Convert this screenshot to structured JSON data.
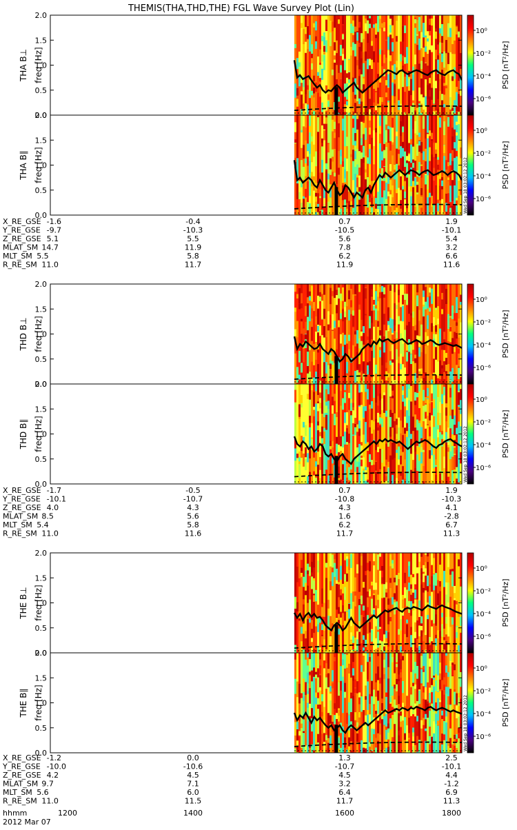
{
  "title": "THEMIS(THA,THD,THE) FGL Wave Survey Plot (Lin)",
  "footer": {
    "hhmm_label": "hhmm",
    "date": "2012 Mar 07"
  },
  "colorbar": {
    "label": "PSD [nT²/Hz]",
    "ticks": [
      "10⁰",
      "10⁻²",
      "10⁻⁴",
      "10⁻⁶"
    ],
    "colors": [
      "#000000",
      "#4a0080",
      "#0000ff",
      "#00c0ff",
      "#00ff80",
      "#ffff00",
      "#ff8000",
      "#ff0000",
      "#b00000"
    ]
  },
  "stamp": "Wed Sep 18 03:02:12 2012",
  "chart_data": {
    "type": "heatmap",
    "x_range_hhmm": [
      1130,
      1835
    ],
    "data_start_hhmm": 1542,
    "ylim": [
      0,
      2.0
    ],
    "yticks": [
      "2.0",
      "1.5",
      "1.0",
      "0.5",
      "0.0"
    ],
    "ylabel": "freq [Hz]",
    "probes": [
      {
        "name": "THA",
        "panels": [
          {
            "label": "THA B⊥",
            "solid_line": [
              1.1,
              0.75,
              0.8,
              0.72,
              0.75,
              0.78,
              0.7,
              0.62,
              0.55,
              0.6,
              0.5,
              0.45,
              0.5,
              0.48,
              0.55,
              0.6,
              0.55,
              0.45,
              0.5,
              0.55,
              0.6,
              0.65,
              0.55,
              0.5,
              0.45,
              0.5,
              0.55,
              0.6,
              0.65,
              0.7,
              0.75,
              0.8,
              0.85,
              0.9,
              0.88,
              0.85,
              0.82,
              0.88,
              0.9,
              0.85,
              0.82,
              0.85,
              0.88,
              0.9,
              0.88,
              0.85,
              0.82,
              0.8,
              0.85,
              0.88,
              0.9,
              0.85,
              0.82,
              0.8,
              0.85,
              0.88,
              0.9,
              0.85,
              0.82,
              0.7
            ],
            "dashed_line": 0.15
          },
          {
            "label": "THA B∥",
            "solid_line": [
              1.1,
              0.7,
              0.75,
              0.65,
              0.7,
              0.75,
              0.7,
              0.6,
              0.55,
              0.7,
              0.6,
              0.5,
              0.45,
              0.55,
              0.65,
              0.5,
              0.4,
              0.45,
              0.6,
              0.55,
              0.45,
              0.35,
              0.45,
              0.4,
              0.35,
              0.5,
              0.55,
              0.45,
              0.6,
              0.7,
              0.8,
              0.75,
              0.85,
              0.8,
              0.75,
              0.8,
              0.85,
              0.9,
              0.85,
              0.8,
              0.85,
              0.9,
              0.88,
              0.85,
              0.8,
              0.85,
              0.88,
              0.9,
              0.85,
              0.8,
              0.82,
              0.85,
              0.88,
              0.85,
              0.8,
              0.85,
              0.88,
              0.85,
              0.8,
              0.7
            ],
            "dashed_line": 0.18
          }
        ],
        "ephemeris": {
          "rows": [
            {
              "name": "X_RE_GSE",
              "values": [
                "-1.6",
                "-0.4",
                "0.7",
                "1.9"
              ]
            },
            {
              "name": "Y_RE_GSE",
              "values": [
                "-9.7",
                "-10.3",
                "-10.5",
                "-10.1"
              ]
            },
            {
              "name": "Z_RE_GSE",
              "values": [
                "5.1",
                "5.5",
                "5.6",
                "5.4"
              ]
            },
            {
              "name": "MLAT_SM",
              "values": [
                "14.7",
                "11.9",
                "7.8",
                "3.2"
              ]
            },
            {
              "name": "MLT_SM",
              "values": [
                "5.5",
                "5.8",
                "6.2",
                "6.6"
              ]
            },
            {
              "name": "R_RE_SM",
              "values": [
                "11.0",
                "11.7",
                "11.9",
                "11.6"
              ]
            }
          ]
        }
      },
      {
        "name": "THD",
        "panels": [
          {
            "label": "THD B⊥",
            "solid_line": [
              0.95,
              0.7,
              0.8,
              0.75,
              0.85,
              0.8,
              0.75,
              0.7,
              0.72,
              0.8,
              0.7,
              0.65,
              0.6,
              0.7,
              0.65,
              0.55,
              0.45,
              0.5,
              0.6,
              0.55,
              0.45,
              0.5,
              0.55,
              0.6,
              0.7,
              0.75,
              0.8,
              0.75,
              0.85,
              0.8,
              0.9,
              0.85,
              0.88,
              0.9,
              0.85,
              0.82,
              0.85,
              0.88,
              0.9,
              0.85,
              0.8,
              0.82,
              0.85,
              0.88,
              0.85,
              0.8,
              0.82,
              0.85,
              0.88,
              0.85,
              0.8,
              0.78,
              0.8,
              0.82,
              0.8,
              0.78,
              0.76,
              0.78,
              0.75,
              0.72
            ],
            "dashed_line": 0.15
          },
          {
            "label": "THD B∥",
            "solid_line": [
              0.95,
              0.8,
              0.75,
              0.85,
              0.8,
              0.7,
              0.75,
              0.65,
              0.7,
              0.8,
              0.75,
              0.6,
              0.55,
              0.6,
              0.5,
              0.45,
              0.55,
              0.6,
              0.5,
              0.45,
              0.4,
              0.5,
              0.55,
              0.6,
              0.65,
              0.7,
              0.75,
              0.8,
              0.85,
              0.8,
              0.88,
              0.85,
              0.9,
              0.85,
              0.88,
              0.85,
              0.82,
              0.85,
              0.8,
              0.75,
              0.7,
              0.75,
              0.8,
              0.85,
              0.82,
              0.85,
              0.88,
              0.85,
              0.8,
              0.75,
              0.72,
              0.78,
              0.8,
              0.85,
              0.88,
              0.9,
              0.85,
              0.82,
              0.78,
              0.75
            ],
            "dashed_line": 0.2
          }
        ],
        "ephemeris": {
          "rows": [
            {
              "name": "X_RE_GSE",
              "values": [
                "-1.7",
                "-0.5",
                "0.7",
                "1.9"
              ]
            },
            {
              "name": "Y_RE_GSE",
              "values": [
                "-10.1",
                "-10.7",
                "-10.8",
                "-10.3"
              ]
            },
            {
              "name": "Z_RE_GSE",
              "values": [
                "4.0",
                "4.3",
                "4.3",
                "4.1"
              ]
            },
            {
              "name": "MLAT_SM",
              "values": [
                "8.5",
                "5.6",
                "1.6",
                "-2.8"
              ]
            },
            {
              "name": "MLT_SM",
              "values": [
                "5.4",
                "5.8",
                "6.2",
                "6.7"
              ]
            },
            {
              "name": "R_RE_SM",
              "values": [
                "11.0",
                "11.6",
                "11.7",
                "11.3"
              ]
            }
          ]
        }
      },
      {
        "name": "THE",
        "panels": [
          {
            "label": "THE B⊥",
            "solid_line": [
              0.8,
              0.7,
              0.78,
              0.65,
              0.75,
              0.8,
              0.72,
              0.78,
              0.7,
              0.72,
              0.65,
              0.55,
              0.5,
              0.45,
              0.55,
              0.6,
              0.55,
              0.45,
              0.5,
              0.6,
              0.7,
              0.6,
              0.55,
              0.5,
              0.55,
              0.6,
              0.65,
              0.7,
              0.75,
              0.7,
              0.75,
              0.8,
              0.85,
              0.82,
              0.85,
              0.88,
              0.9,
              0.85,
              0.82,
              0.88,
              0.9,
              0.88,
              0.92,
              0.9,
              0.88,
              0.85,
              0.9,
              0.95,
              0.92,
              0.9,
              0.88,
              0.92,
              0.95,
              0.92,
              0.9,
              0.88,
              0.85,
              0.82,
              0.8,
              0.78
            ],
            "dashed_line": 0.15
          },
          {
            "label": "THE B∥",
            "solid_line": [
              0.8,
              0.65,
              0.75,
              0.7,
              0.8,
              0.7,
              0.6,
              0.72,
              0.65,
              0.7,
              0.62,
              0.55,
              0.5,
              0.55,
              0.45,
              0.5,
              0.55,
              0.45,
              0.4,
              0.5,
              0.55,
              0.5,
              0.45,
              0.5,
              0.55,
              0.6,
              0.55,
              0.6,
              0.65,
              0.7,
              0.75,
              0.8,
              0.85,
              0.8,
              0.82,
              0.85,
              0.88,
              0.85,
              0.9,
              0.88,
              0.85,
              0.9,
              0.88,
              0.92,
              0.9,
              0.88,
              0.85,
              0.9,
              0.92,
              0.88,
              0.85,
              0.88,
              0.9,
              0.88,
              0.85,
              0.82,
              0.85,
              0.82,
              0.8,
              0.78
            ],
            "dashed_line": 0.18
          }
        ],
        "ephemeris": {
          "rows": [
            {
              "name": "X_RE_GSE",
              "values": [
                "-1.2",
                "0.0",
                "1.3",
                "2.5"
              ]
            },
            {
              "name": "Y_RE_GSE",
              "values": [
                "-10.0",
                "-10.6",
                "-10.7",
                "-10.1"
              ]
            },
            {
              "name": "Z_RE_GSE",
              "values": [
                "4.2",
                "4.5",
                "4.5",
                "4.4"
              ]
            },
            {
              "name": "MLAT_SM",
              "values": [
                "9.7",
                "7.1",
                "3.2",
                "-1.2"
              ]
            },
            {
              "name": "MLT_SM",
              "values": [
                "5.6",
                "6.0",
                "6.4",
                "6.9"
              ]
            },
            {
              "name": "R_RE_SM",
              "values": [
                "11.0",
                "11.5",
                "11.7",
                "11.3"
              ]
            }
          ],
          "time_ticks": [
            "1200",
            "1400",
            "1600",
            "1800"
          ]
        }
      }
    ]
  }
}
